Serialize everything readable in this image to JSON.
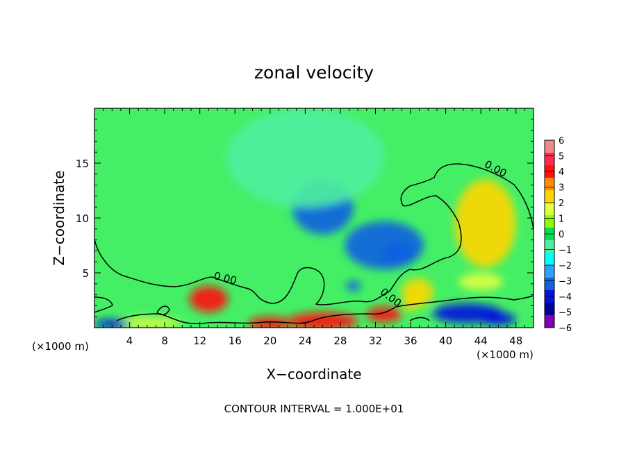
{
  "chart_data": {
    "type": "heatmap",
    "title": "zonal velocity",
    "xlabel": "X−coordinate",
    "ylabel": "Z−coordinate",
    "x_unit_left": "(×1000 m)",
    "x_unit_right": "(×1000 m)",
    "xlim": [
      0,
      50
    ],
    "ylim": [
      0,
      20
    ],
    "x_ticks": [
      4,
      8,
      12,
      16,
      20,
      24,
      28,
      32,
      36,
      40,
      44,
      48
    ],
    "x_tick_labels": [
      "4",
      "8",
      "12",
      "16",
      "20",
      "24",
      "28",
      "32",
      "36",
      "40",
      "44",
      "48"
    ],
    "y_ticks": [
      5,
      10,
      15
    ],
    "y_tick_labels": [
      "5",
      "10",
      "15"
    ],
    "colorbar": {
      "min": -6,
      "max": 6,
      "levels": [
        6,
        5,
        4,
        3,
        2,
        1,
        0,
        -1,
        -2,
        -3,
        -4,
        -5,
        -6
      ],
      "labels": [
        "6",
        "5",
        "4",
        "3",
        "2",
        "1",
        "0",
        "−1",
        "−2",
        "−3",
        "−4",
        "−5",
        "−6"
      ]
    },
    "contour_labels": [
      {
        "text": "0.00",
        "x": 45.5,
        "z": 14.2,
        "angle": 28
      },
      {
        "text": "0.00",
        "x": 14.8,
        "z": 4.2,
        "angle": 14
      },
      {
        "text": "0.00",
        "x": 33.5,
        "z": 2.5,
        "angle": 38
      }
    ],
    "features": [
      {
        "x": 26.0,
        "z": 11.0,
        "rx": 3.5,
        "rz": 2.5,
        "v": -3.0
      },
      {
        "x": 33.0,
        "z": 7.5,
        "rx": 4.5,
        "rz": 2.2,
        "v": -3.0
      },
      {
        "x": 34.5,
        "z": 6.8,
        "rx": 1.8,
        "rz": 1.0,
        "v": -3.0
      },
      {
        "x": 24.0,
        "z": 15.5,
        "rx": 9.0,
        "rz": 4.5,
        "v": -1.2
      },
      {
        "x": 44.5,
        "z": 9.5,
        "rx": 3.5,
        "rz": 4.0,
        "v": 2.2
      },
      {
        "x": 13.0,
        "z": 2.6,
        "rx": 2.2,
        "rz": 1.2,
        "v": 4.0
      },
      {
        "x": 36.8,
        "z": 3.2,
        "rx": 1.8,
        "rz": 1.3,
        "v": 3.0
      },
      {
        "x": 36.0,
        "z": 2.2,
        "rx": 0.8,
        "rz": 0.7,
        "v": 3.0
      },
      {
        "x": 26.0,
        "z": 0.6,
        "rx": 4.0,
        "rz": 0.8,
        "v": 4.5
      },
      {
        "x": 20.0,
        "z": 0.4,
        "rx": 2.5,
        "rz": 0.6,
        "v": 4.0
      },
      {
        "x": 33.0,
        "z": 1.2,
        "rx": 2.0,
        "rz": 0.7,
        "v": 4.0
      },
      {
        "x": 6.0,
        "z": 0.4,
        "rx": 4.0,
        "rz": 0.5,
        "v": 2.0
      },
      {
        "x": 42.5,
        "z": 1.3,
        "rx": 4.0,
        "rz": 0.9,
        "v": -4.0
      },
      {
        "x": 46.0,
        "z": 0.8,
        "rx": 2.0,
        "rz": 0.6,
        "v": -4.0
      },
      {
        "x": 2.0,
        "z": 0.35,
        "rx": 2.0,
        "rz": 0.4,
        "v": -4.0
      },
      {
        "x": 29.5,
        "z": 3.8,
        "rx": 0.8,
        "rz": 0.5,
        "v": -3.0
      },
      {
        "x": 44.0,
        "z": 4.2,
        "rx": 2.5,
        "rz": 0.8,
        "v": 1.5
      }
    ],
    "annotation": "CONTOUR INTERVAL = 1.000E+01"
  },
  "colors": {
    "scale": [
      "#f08a8a",
      "#ff2a4c",
      "#ff1010",
      "#ff8c00",
      "#ffd700",
      "#e0ff40",
      "#88ff00",
      "#00e050",
      "#50f0a0",
      "#00ffff",
      "#30a0ff",
      "#1060e0",
      "#0010e0",
      "#0000a0",
      "#8000b0"
    ]
  }
}
